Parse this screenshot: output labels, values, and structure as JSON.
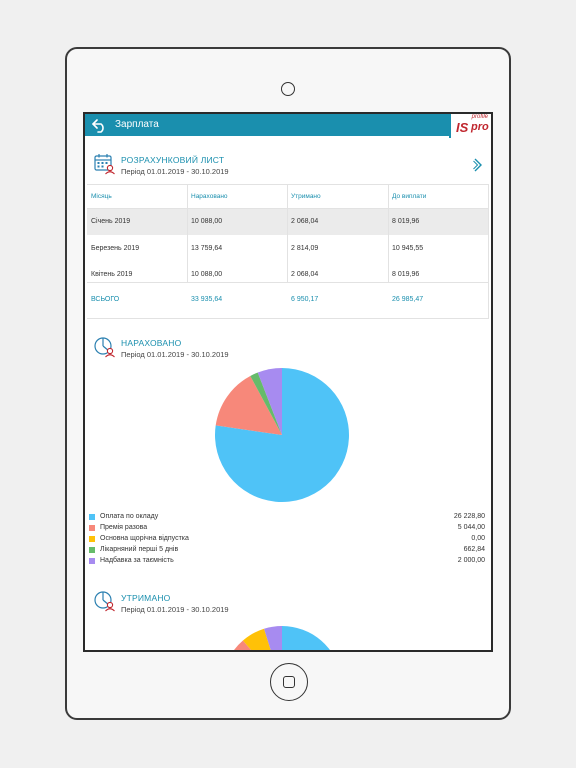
{
  "header": {
    "title": "Зарплата"
  },
  "logo": {
    "brand_main": "IS",
    "brand_pro": "pro",
    "brand_small": "profile"
  },
  "payslip": {
    "title": "РОЗРАХУНКОВИЙ ЛИСТ",
    "period": "Період 01.01.2019 - 30.10.2019",
    "columns": [
      "Місяць",
      "Нараховано",
      "Утримано",
      "До виплати"
    ],
    "rows": [
      [
        "Січень 2019",
        "10 088,00",
        "2 068,04",
        "8 019,96"
      ],
      [
        "Березень 2019",
        "13 759,64",
        "2 814,09",
        "10 945,55"
      ],
      [
        "Квітень 2019",
        "10 088,00",
        "2 068,04",
        "8 019,96"
      ]
    ],
    "total": [
      "ВСЬОГО",
      "33 935,64",
      "6 950,17",
      "26 985,47"
    ]
  },
  "accrued": {
    "title": "НАРАХОВАНО",
    "period": "Період 01.01.2019 - 30.10.2019",
    "chart_data": {
      "type": "pie",
      "categories": [
        "Оплата по окладу",
        "Премія разова",
        "Основна щорічна відпустка",
        "Лікарняний перші 5 днів",
        "Надбавка за таємність"
      ],
      "values": [
        26228.8,
        5044.0,
        0.0,
        662.84,
        2000.0
      ],
      "value_labels": [
        "26 228,80",
        "5 044,00",
        "0,00",
        "662,84",
        "2 000,00"
      ],
      "colors": [
        "#4fc3f7",
        "#f7887a",
        "#ffc107",
        "#66bb6a",
        "#a78bf0"
      ],
      "legend": "bottom"
    }
  },
  "withheld": {
    "title": "УТРИМАНО",
    "period": "Період 01.01.2019 - 30.10.2019",
    "chart_data": {
      "type": "pie",
      "values": [
        4.2,
        1.3,
        0.4,
        0.3
      ],
      "colors": [
        "#4fc3f7",
        "#f7887a",
        "#ffc107",
        "#a78bf0"
      ]
    }
  }
}
